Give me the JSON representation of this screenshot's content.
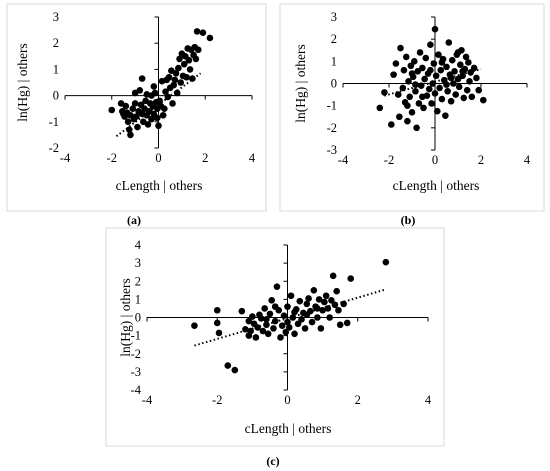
{
  "chart_data": [
    {
      "type": "scatter",
      "panel_label": "(a)",
      "xlabel": "cLength | others",
      "ylabel": "ln(Hg) | others",
      "xlim": [
        -4,
        4
      ],
      "ylim": [
        -2,
        3
      ],
      "xticks": [
        -4,
        -2,
        0,
        2,
        4
      ],
      "yticks": [
        -2,
        -1,
        0,
        1,
        2,
        3
      ],
      "trendline": {
        "x": [
          -1.8,
          1.8
        ],
        "y": [
          -1.55,
          0.85
        ]
      },
      "points": [
        [
          -2.0,
          -0.55
        ],
        [
          -1.6,
          -0.3
        ],
        [
          -1.55,
          -0.6
        ],
        [
          -1.5,
          -0.7
        ],
        [
          -1.45,
          -0.8
        ],
        [
          -1.4,
          -0.4
        ],
        [
          -1.35,
          -0.65
        ],
        [
          -1.3,
          -1.0
        ],
        [
          -1.25,
          -1.3
        ],
        [
          -1.2,
          -1.5
        ],
        [
          -1.2,
          -0.75
        ],
        [
          -1.1,
          -0.5
        ],
        [
          -1.05,
          -0.9
        ],
        [
          -1.0,
          0.1
        ],
        [
          -1.0,
          -0.3
        ],
        [
          -0.95,
          -0.8
        ],
        [
          -0.9,
          -1.2
        ],
        [
          -0.85,
          -0.6
        ],
        [
          -0.8,
          0.2
        ],
        [
          -0.75,
          -0.35
        ],
        [
          -0.7,
          -0.7
        ],
        [
          -0.65,
          -1.0
        ],
        [
          -0.6,
          -0.5
        ],
        [
          -0.55,
          -0.2
        ],
        [
          -0.5,
          0.05
        ],
        [
          -0.5,
          -0.75
        ],
        [
          -0.45,
          -1.1
        ],
        [
          -0.4,
          -0.6
        ],
        [
          -0.35,
          -0.3
        ],
        [
          -0.3,
          0.0
        ],
        [
          -0.3,
          -0.9
        ],
        [
          -0.25,
          -0.4
        ],
        [
          -0.2,
          -0.7
        ],
        [
          -0.15,
          0.1
        ],
        [
          -0.1,
          -0.25
        ],
        [
          -0.05,
          -0.5
        ],
        [
          -0.05,
          -0.85
        ],
        [
          0.0,
          -1.15
        ],
        [
          0.05,
          -0.2
        ],
        [
          0.1,
          -0.4
        ],
        [
          0.15,
          0.55
        ],
        [
          0.2,
          -0.75
        ],
        [
          0.25,
          -0.5
        ],
        [
          0.3,
          0.15
        ],
        [
          0.35,
          0.6
        ],
        [
          0.4,
          -0.05
        ],
        [
          0.45,
          0.7
        ],
        [
          0.5,
          0.3
        ],
        [
          0.55,
          0.95
        ],
        [
          0.6,
          -0.3
        ],
        [
          0.65,
          0.4
        ],
        [
          0.7,
          0.6
        ],
        [
          0.75,
          0.85
        ],
        [
          0.8,
          0.1
        ],
        [
          0.85,
          1.05
        ],
        [
          0.9,
          1.4
        ],
        [
          0.95,
          0.5
        ],
        [
          1.0,
          1.6
        ],
        [
          1.05,
          0.75
        ],
        [
          1.1,
          1.2
        ],
        [
          1.15,
          1.5
        ],
        [
          1.2,
          0.7
        ],
        [
          1.25,
          1.8
        ],
        [
          1.3,
          1.35
        ],
        [
          1.35,
          1.0
        ],
        [
          1.4,
          1.75
        ],
        [
          1.45,
          0.65
        ],
        [
          1.5,
          1.55
        ],
        [
          1.55,
          1.85
        ],
        [
          1.6,
          1.4
        ],
        [
          1.65,
          2.45
        ],
        [
          1.7,
          1.75
        ],
        [
          1.9,
          2.4
        ],
        [
          2.2,
          2.2
        ],
        [
          -0.7,
          0.65
        ],
        [
          -0.2,
          0.35
        ]
      ]
    },
    {
      "type": "scatter",
      "panel_label": "(b)",
      "xlabel": "cLength | others",
      "ylabel": "ln(Hg) | others",
      "xlim": [
        -4,
        4
      ],
      "ylim": [
        -3,
        3
      ],
      "xticks": [
        -4,
        -2,
        0,
        2,
        4
      ],
      "yticks": [
        -3,
        -2,
        -1,
        0,
        1,
        2,
        3
      ],
      "trendline": {
        "x": [
          -2.2,
          2.0
        ],
        "y": [
          -0.55,
          0.65
        ]
      },
      "points": [
        [
          -2.4,
          -1.1
        ],
        [
          -2.2,
          -0.4
        ],
        [
          -1.9,
          -1.85
        ],
        [
          -1.8,
          0.4
        ],
        [
          -1.7,
          0.9
        ],
        [
          -1.6,
          -0.5
        ],
        [
          -1.55,
          -1.5
        ],
        [
          -1.5,
          1.6
        ],
        [
          -1.4,
          -0.2
        ],
        [
          -1.35,
          0.6
        ],
        [
          -1.3,
          -0.85
        ],
        [
          -1.25,
          1.2
        ],
        [
          -1.2,
          -1.7
        ],
        [
          -1.15,
          0.1
        ],
        [
          -1.1,
          -0.6
        ],
        [
          -1.05,
          0.8
        ],
        [
          -1.0,
          -1.3
        ],
        [
          -0.95,
          0.3
        ],
        [
          -0.9,
          1.0
        ],
        [
          -0.85,
          -0.35
        ],
        [
          -0.8,
          -2.0
        ],
        [
          -0.75,
          0.55
        ],
        [
          -0.7,
          -0.9
        ],
        [
          -0.65,
          1.4
        ],
        [
          -0.6,
          -0.1
        ],
        [
          -0.55,
          0.7
        ],
        [
          -0.5,
          -1.1
        ],
        [
          -0.45,
          0.2
        ],
        [
          -0.4,
          1.15
        ],
        [
          -0.35,
          -0.55
        ],
        [
          -0.3,
          0.45
        ],
        [
          -0.25,
          -0.25
        ],
        [
          -0.2,
          1.75
        ],
        [
          -0.15,
          -0.9
        ],
        [
          -0.1,
          0.0
        ],
        [
          -0.05,
          0.9
        ],
        [
          0.0,
          -0.45
        ],
        [
          0.0,
          2.45
        ],
        [
          0.05,
          0.35
        ],
        [
          0.1,
          -1.25
        ],
        [
          0.15,
          1.3
        ],
        [
          0.2,
          -0.2
        ],
        [
          0.25,
          0.6
        ],
        [
          0.3,
          -0.7
        ],
        [
          0.35,
          1.1
        ],
        [
          0.4,
          0.15
        ],
        [
          0.45,
          -1.45
        ],
        [
          0.5,
          0.75
        ],
        [
          0.55,
          -0.35
        ],
        [
          0.6,
          1.85
        ],
        [
          0.65,
          0.4
        ],
        [
          0.7,
          -0.8
        ],
        [
          0.75,
          1.05
        ],
        [
          0.8,
          0.0
        ],
        [
          0.85,
          0.55
        ],
        [
          0.9,
          -0.5
        ],
        [
          0.95,
          1.3
        ],
        [
          1.0,
          0.2
        ],
        [
          1.05,
          -0.15
        ],
        [
          1.1,
          0.85
        ],
        [
          1.15,
          1.5
        ],
        [
          1.2,
          0.35
        ],
        [
          1.25,
          -0.65
        ],
        [
          1.3,
          0.65
        ],
        [
          1.35,
          1.2
        ],
        [
          1.4,
          -0.3
        ],
        [
          1.45,
          0.95
        ],
        [
          1.5,
          0.1
        ],
        [
          1.55,
          0.5
        ],
        [
          1.6,
          -0.6
        ],
        [
          1.7,
          0.7
        ],
        [
          1.8,
          0.25
        ],
        [
          1.9,
          -0.3
        ],
        [
          2.1,
          -0.75
        ],
        [
          -1.0,
          0.45
        ],
        [
          -0.55,
          -0.6
        ],
        [
          0.3,
          0.95
        ],
        [
          -0.85,
          -0.05
        ],
        [
          1.2,
          0.55
        ],
        [
          0.7,
          0.25
        ],
        [
          -0.2,
          0.6
        ],
        [
          1.0,
          1.4
        ],
        [
          0.5,
          -0.05
        ],
        [
          -1.2,
          -1.0
        ]
      ]
    },
    {
      "type": "scatter",
      "panel_label": "(c)",
      "xlabel": "cLength | others",
      "ylabel": "ln(Hg) | others",
      "xlim": [
        -4,
        4
      ],
      "ylim": [
        -4,
        4
      ],
      "xticks": [
        -4,
        -2,
        0,
        2,
        4
      ],
      "yticks": [
        -4,
        -3,
        -2,
        -1,
        0,
        1,
        2,
        3,
        4
      ],
      "trendline": {
        "x": [
          -2.65,
          2.8
        ],
        "y": [
          -1.55,
          1.55
        ]
      },
      "points": [
        [
          -2.65,
          -0.45
        ],
        [
          -2.0,
          0.4
        ],
        [
          -2.0,
          -0.3
        ],
        [
          -1.95,
          -0.85
        ],
        [
          -1.7,
          -2.65
        ],
        [
          -1.5,
          -2.9
        ],
        [
          -1.3,
          0.35
        ],
        [
          -1.2,
          -0.65
        ],
        [
          -1.1,
          -0.2
        ],
        [
          -1.05,
          -0.75
        ],
        [
          -1.0,
          0.05
        ],
        [
          -0.95,
          -0.35
        ],
        [
          -0.9,
          -1.1
        ],
        [
          -0.85,
          -0.55
        ],
        [
          -0.8,
          0.15
        ],
        [
          -0.75,
          -0.05
        ],
        [
          -0.7,
          -0.75
        ],
        [
          -0.65,
          0.5
        ],
        [
          -0.6,
          -0.4
        ],
        [
          -0.55,
          -0.9
        ],
        [
          -0.5,
          0.2
        ],
        [
          -0.45,
          0.95
        ],
        [
          -0.4,
          -0.6
        ],
        [
          -0.35,
          -0.2
        ],
        [
          -0.3,
          1.7
        ],
        [
          -0.25,
          0.4
        ],
        [
          -0.2,
          -1.1
        ],
        [
          -0.15,
          -0.45
        ],
        [
          -0.1,
          0.1
        ],
        [
          -0.05,
          -0.8
        ],
        [
          0.0,
          0.6
        ],
        [
          0.0,
          -0.25
        ],
        [
          0.05,
          -0.55
        ],
        [
          0.1,
          1.2
        ],
        [
          0.15,
          0.0
        ],
        [
          0.2,
          -0.9
        ],
        [
          0.25,
          0.45
        ],
        [
          0.3,
          -0.35
        ],
        [
          0.35,
          0.9
        ],
        [
          0.4,
          -0.1
        ],
        [
          0.45,
          0.25
        ],
        [
          0.5,
          -0.6
        ],
        [
          0.55,
          0.75
        ],
        [
          0.6,
          1.05
        ],
        [
          0.65,
          0.35
        ],
        [
          0.7,
          -0.25
        ],
        [
          0.75,
          1.5
        ],
        [
          0.8,
          0.6
        ],
        [
          0.85,
          0.0
        ],
        [
          0.9,
          1.0
        ],
        [
          0.95,
          -0.6
        ],
        [
          1.0,
          0.4
        ],
        [
          1.05,
          0.85
        ],
        [
          1.1,
          1.2
        ],
        [
          1.15,
          0.5
        ],
        [
          1.2,
          0.0
        ],
        [
          1.25,
          0.95
        ],
        [
          1.3,
          2.3
        ],
        [
          1.35,
          0.7
        ],
        [
          1.4,
          1.45
        ],
        [
          1.45,
          0.4
        ],
        [
          1.5,
          -0.4
        ],
        [
          1.6,
          0.75
        ],
        [
          1.7,
          -0.3
        ],
        [
          1.8,
          2.15
        ],
        [
          2.8,
          3.05
        ],
        [
          -0.6,
          -0.1
        ],
        [
          0.2,
          0.3
        ],
        [
          -1.1,
          -1.0
        ],
        [
          0.55,
          0.15
        ],
        [
          -0.35,
          0.6
        ],
        [
          0.85,
          0.5
        ]
      ]
    }
  ]
}
